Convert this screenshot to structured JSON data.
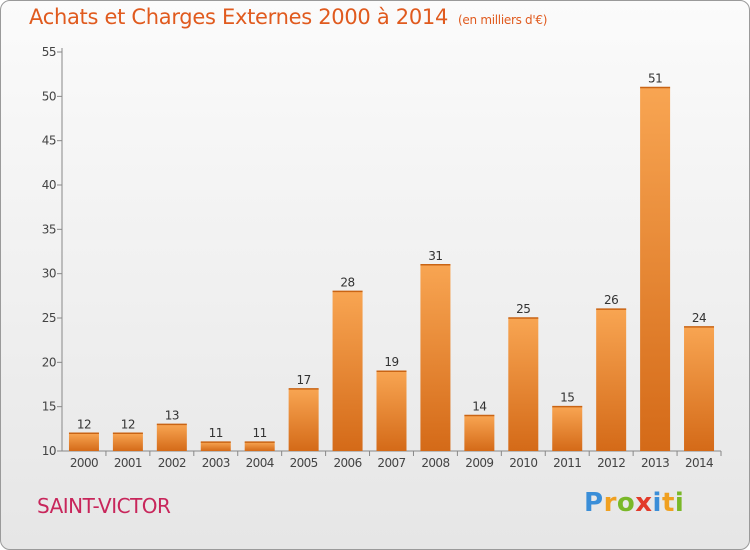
{
  "chart_data": {
    "type": "bar",
    "title": "Achats et Charges Externes 2000 à 2014",
    "unit_note": "(en milliers d'€)",
    "categories": [
      "2000",
      "2001",
      "2002",
      "2003",
      "2004",
      "2005",
      "2006",
      "2007",
      "2008",
      "2009",
      "2010",
      "2011",
      "2012",
      "2013",
      "2014"
    ],
    "values": [
      12,
      12,
      13,
      11,
      11,
      17,
      28,
      19,
      31,
      14,
      25,
      15,
      26,
      51,
      24
    ],
    "ylim": [
      10,
      55
    ],
    "yticks": [
      10,
      15,
      20,
      25,
      30,
      35,
      40,
      45,
      50,
      55
    ],
    "xlabel": "",
    "ylabel": "",
    "grid": false,
    "bar_color_light": "#f8a552",
    "bar_color_dark": "#d46a18",
    "title_color": "#e05a1e"
  },
  "footer": {
    "place": "SAINT-VICTOR",
    "logo_letters": [
      {
        "ch": "P",
        "color": "#3a8ed8"
      },
      {
        "ch": "r",
        "color": "#f0a020"
      },
      {
        "ch": "o",
        "color": "#7ab828"
      },
      {
        "ch": "x",
        "color": "#e23a2a"
      },
      {
        "ch": "i",
        "color": "#3a8ed8"
      },
      {
        "ch": "t",
        "color": "#f0a020"
      },
      {
        "ch": "i",
        "color": "#7ab828"
      }
    ]
  }
}
